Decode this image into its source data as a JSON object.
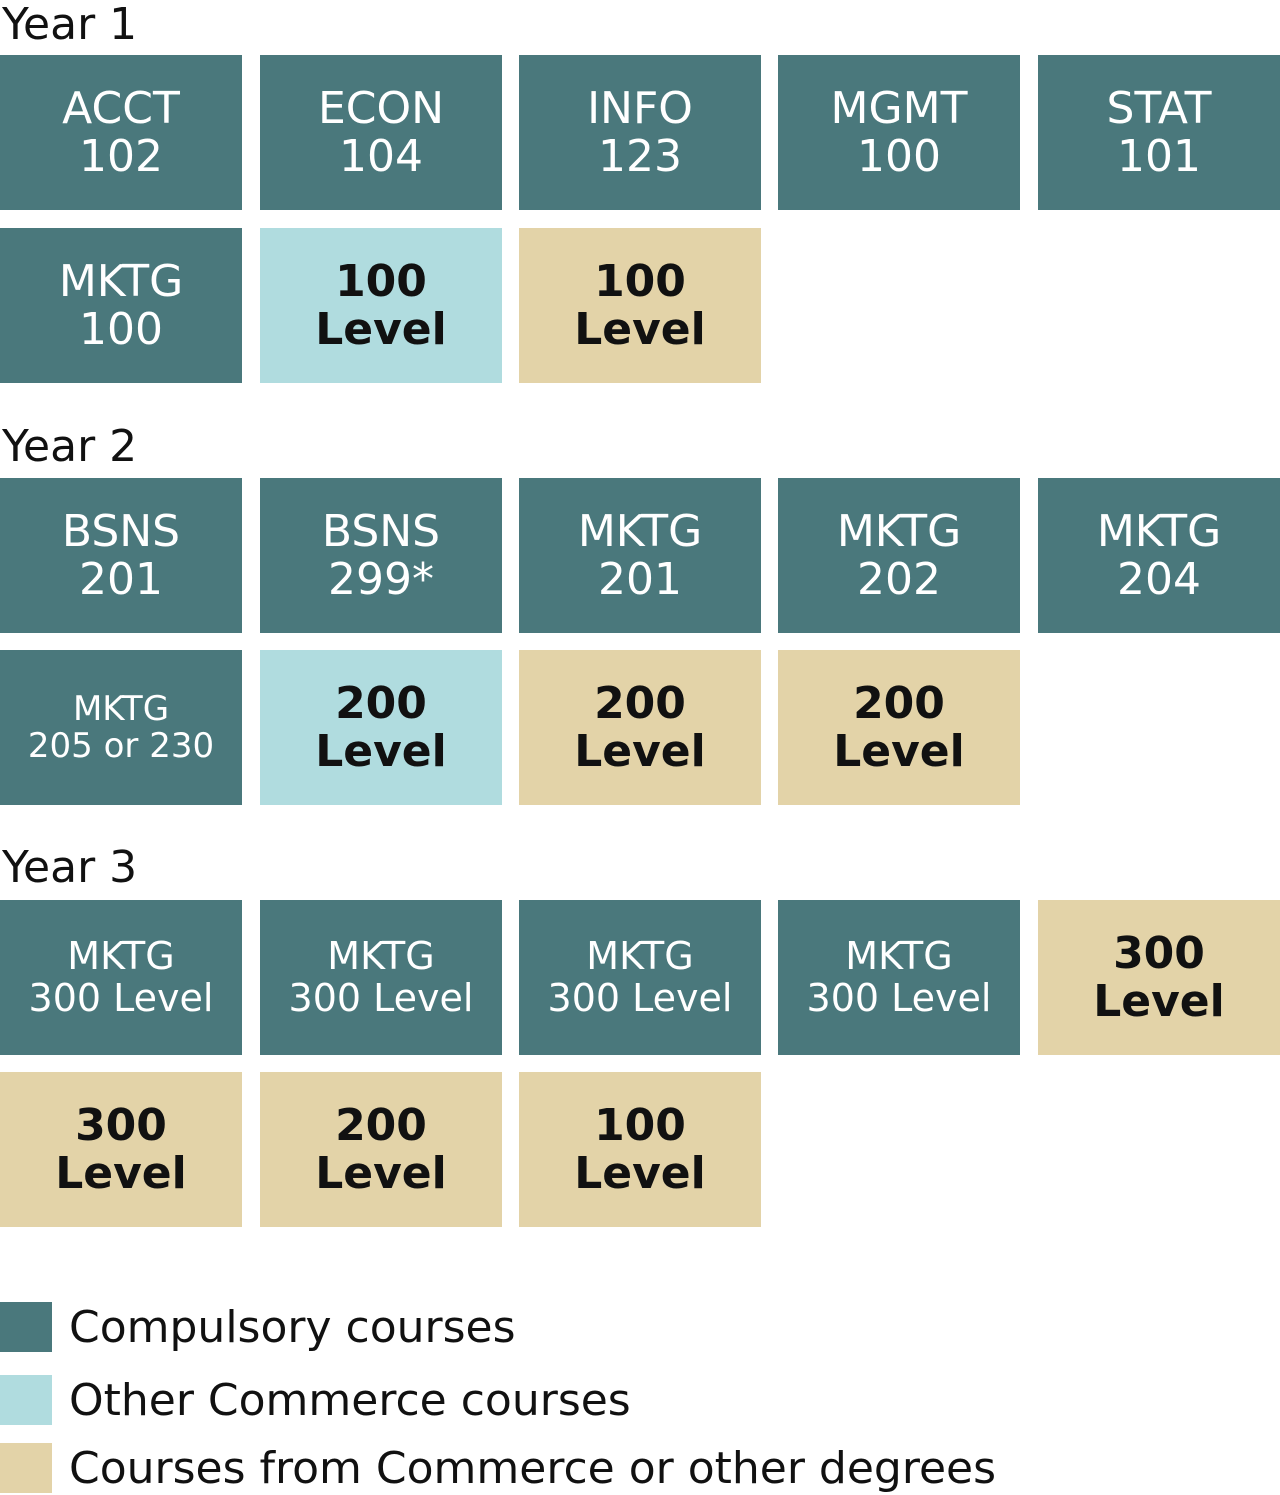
{
  "colors": {
    "compulsory": "#4a787c",
    "commerce": "#b0dcdf",
    "other": "#e3d3a8"
  },
  "years": [
    {
      "title": "Year 1",
      "tiles": [
        {
          "kind": "compulsory",
          "line1": "ACCT",
          "line2": "102"
        },
        {
          "kind": "compulsory",
          "line1": "ECON",
          "line2": "104"
        },
        {
          "kind": "compulsory",
          "line1": "INFO",
          "line2": "123"
        },
        {
          "kind": "compulsory",
          "line1": "MGMT",
          "line2": "100"
        },
        {
          "kind": "compulsory",
          "line1": "STAT",
          "line2": "101"
        },
        {
          "kind": "compulsory",
          "line1": "MKTG",
          "line2": "100"
        },
        {
          "kind": "commerce",
          "line1": "100",
          "line2": "Level"
        },
        {
          "kind": "other",
          "line1": "100",
          "line2": "Level"
        }
      ]
    },
    {
      "title": "Year 2",
      "tiles": [
        {
          "kind": "compulsory",
          "line1": "BSNS",
          "line2": "201"
        },
        {
          "kind": "compulsory",
          "line1": "BSNS",
          "line2": "299*"
        },
        {
          "kind": "compulsory",
          "line1": "MKTG",
          "line2": "201"
        },
        {
          "kind": "compulsory",
          "line1": "MKTG",
          "line2": "202"
        },
        {
          "kind": "compulsory",
          "line1": "MKTG",
          "line2": "204"
        },
        {
          "kind": "compulsory",
          "line1": "MKTG",
          "line2": "205 or 230"
        },
        {
          "kind": "commerce",
          "line1": "200",
          "line2": "Level"
        },
        {
          "kind": "other",
          "line1": "200",
          "line2": "Level"
        },
        {
          "kind": "other",
          "line1": "200",
          "line2": "Level"
        }
      ]
    },
    {
      "title": "Year 3",
      "tiles": [
        {
          "kind": "compulsory",
          "line1": "MKTG",
          "line2": "300 Level"
        },
        {
          "kind": "compulsory",
          "line1": "MKTG",
          "line2": "300 Level"
        },
        {
          "kind": "compulsory",
          "line1": "MKTG",
          "line2": "300 Level"
        },
        {
          "kind": "compulsory",
          "line1": "MKTG",
          "line2": "300 Level"
        },
        {
          "kind": "other",
          "line1": "300",
          "line2": "Level"
        },
        {
          "kind": "other",
          "line1": "300",
          "line2": "Level"
        },
        {
          "kind": "other",
          "line1": "200",
          "line2": "Level"
        },
        {
          "kind": "other",
          "line1": "100",
          "line2": "Level"
        }
      ]
    }
  ],
  "legend": [
    {
      "kind": "compulsory",
      "label": "Compulsory courses"
    },
    {
      "kind": "commerce",
      "label": "Other Commerce courses"
    },
    {
      "kind": "other",
      "label": "Courses from Commerce or other degrees"
    }
  ]
}
